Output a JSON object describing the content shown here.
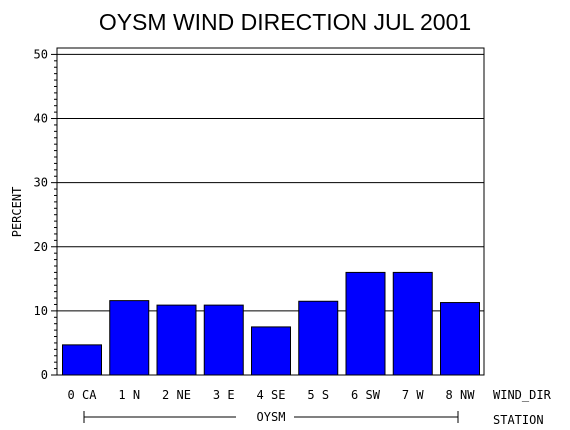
{
  "chart_data": {
    "type": "bar",
    "title": "OYSM WIND DIRECTION JUL 2001",
    "ylabel": "PERCENT",
    "x_axis_name": "WIND_DIR",
    "group_axis_name": "STATION",
    "group_label": "OYSM",
    "categories": [
      "0 CA",
      "1 N",
      "2 NE",
      "3 E",
      "4 SE",
      "5 S",
      "6 SW",
      "7 W",
      "8 NW"
    ],
    "values": [
      4.7,
      11.6,
      10.9,
      10.9,
      7.5,
      11.5,
      16.0,
      16.0,
      11.3
    ],
    "ylim": [
      0,
      51
    ],
    "yticks": [
      0,
      10,
      20,
      30,
      40,
      50
    ],
    "grid": true,
    "bar_color": "#0000ff"
  }
}
